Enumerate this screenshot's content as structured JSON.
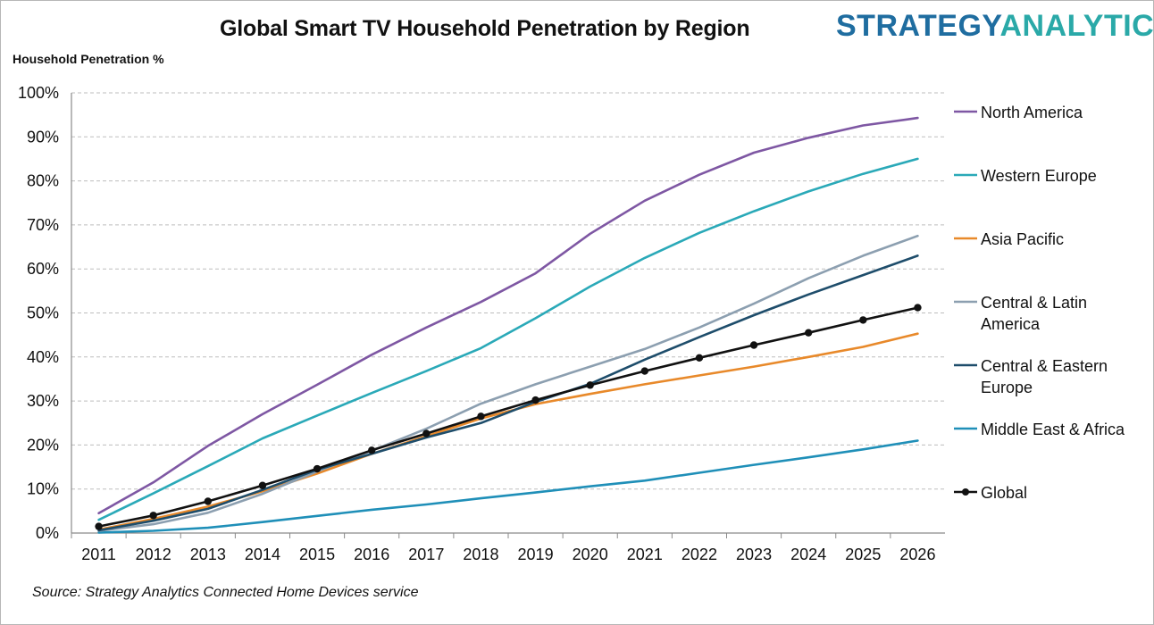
{
  "header": {
    "title": "Global Smart TV Household Penetration by Region",
    "brand_part1": "STRATEGY",
    "brand_part2": "ANALYTICS",
    "ylabel": "Household Penetration %"
  },
  "footer": {
    "source": "Source: Strategy Analytics Connected Home Devices service"
  },
  "chart_data": {
    "type": "line",
    "title": "Global Smart TV Household Penetration by Region",
    "ylabel": "Household Penetration %",
    "xlabel": "",
    "ylim": [
      0,
      100
    ],
    "yticks": [
      "0%",
      "10%",
      "20%",
      "30%",
      "40%",
      "50%",
      "60%",
      "70%",
      "80%",
      "90%",
      "100%"
    ],
    "grid": true,
    "legend_position": "right",
    "categories": [
      "2011",
      "2012",
      "2013",
      "2014",
      "2015",
      "2016",
      "2017",
      "2018",
      "2019",
      "2020",
      "2021",
      "2022",
      "2023",
      "2024",
      "2025",
      "2026"
    ],
    "series": [
      {
        "name": "North America",
        "legend_lines": [
          "North America"
        ],
        "color": "#7e57a3",
        "markers": false,
        "values": [
          4.5,
          11.5,
          19.8,
          27,
          33.7,
          40.5,
          46.7,
          52.5,
          59,
          68,
          75.5,
          81.4,
          86.4,
          89.8,
          92.6,
          94.3
        ]
      },
      {
        "name": "Western Europe",
        "legend_lines": [
          "Western Europe"
        ],
        "color": "#2aa9b8",
        "markers": false,
        "values": [
          3,
          9,
          15.2,
          21.5,
          26.7,
          31.8,
          36.8,
          42,
          48.8,
          56,
          62.5,
          68.2,
          73.1,
          77.6,
          81.6,
          85
        ]
      },
      {
        "name": "Asia Pacific",
        "legend_lines": [
          "Asia Pacific"
        ],
        "color": "#e8892a",
        "markers": false,
        "values": [
          0.8,
          3.2,
          6,
          9.5,
          13.5,
          18,
          22,
          26,
          29.3,
          31.6,
          33.8,
          35.8,
          37.8,
          40,
          42.3,
          45.3
        ]
      },
      {
        "name": "Central & Latin America",
        "legend_lines": [
          "Central & Latin",
          "America"
        ],
        "color": "#8c9fb0",
        "markers": false,
        "values": [
          0.5,
          2,
          4.6,
          8.9,
          14,
          18.7,
          23.7,
          29.4,
          33.8,
          37.8,
          41.8,
          46.7,
          52.1,
          57.9,
          63,
          67.5
        ]
      },
      {
        "name": "Central & Eastern Europe",
        "legend_lines": [
          "Central & Eastern",
          "Europe"
        ],
        "color": "#1e4d6b",
        "markers": false,
        "values": [
          0.6,
          2.8,
          5.5,
          9.8,
          14.4,
          18,
          21.7,
          25,
          29.8,
          33.9,
          39.4,
          44.5,
          49.5,
          54.2,
          58.6,
          63
        ]
      },
      {
        "name": "Middle East & Africa",
        "legend_lines": [
          "Middle East & Africa"
        ],
        "color": "#1f8fb8",
        "markers": false,
        "values": [
          0.1,
          0.5,
          1.2,
          2.5,
          3.9,
          5.3,
          6.5,
          7.9,
          9.2,
          10.6,
          11.9,
          13.7,
          15.5,
          17.2,
          19,
          21
        ]
      },
      {
        "name": "Global",
        "legend_lines": [
          "Global"
        ],
        "color": "#111111",
        "markers": true,
        "values": [
          1.5,
          4,
          7.2,
          10.8,
          14.6,
          18.8,
          22.6,
          26.5,
          30.2,
          33.6,
          36.8,
          39.8,
          42.7,
          45.5,
          48.4,
          51.2
        ]
      }
    ]
  }
}
